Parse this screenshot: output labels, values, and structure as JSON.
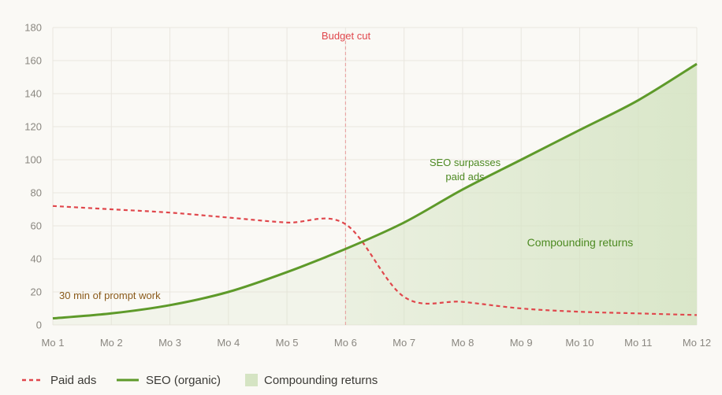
{
  "chart_data": {
    "type": "line",
    "x": [
      "Mo 1",
      "Mo 2",
      "Mo 3",
      "Mo 4",
      "Mo 5",
      "Mo 6",
      "Mo 7",
      "Mo 8",
      "Mo 9",
      "Mo 10",
      "Mo 11",
      "Mo 12"
    ],
    "ylim": [
      0,
      180
    ],
    "yticks": [
      0,
      20,
      40,
      60,
      80,
      100,
      120,
      140,
      160,
      180
    ],
    "grid": true,
    "legend_position": "bottom-left",
    "series": [
      {
        "name": "Paid ads",
        "style": "dashed",
        "color": "#e0474c",
        "values": [
          72,
          70,
          68,
          65,
          62,
          61,
          17,
          14,
          10,
          8,
          7,
          6
        ]
      },
      {
        "name": "SEO (organic)",
        "style": "solid",
        "color": "#5e9a2a",
        "values": [
          4,
          7,
          12,
          20,
          32,
          46,
          62,
          82,
          100,
          118,
          136,
          158
        ]
      }
    ],
    "area": {
      "name": "Compounding returns",
      "color": "#d5e4c3",
      "from_index": 5,
      "to_index": 11
    },
    "annotations": {
      "budget_cut": {
        "text": "Budget cut",
        "x": "Mo 6",
        "color": "#e0474c"
      },
      "prompt_work": {
        "text": "30 min of prompt work",
        "color": "#8a5a1a"
      },
      "surpass": {
        "line1": "SEO surpasses",
        "line2": "paid ads",
        "color": "#4d8a22"
      },
      "compounding": {
        "text": "Compounding returns",
        "color": "#4d8a22"
      }
    }
  }
}
